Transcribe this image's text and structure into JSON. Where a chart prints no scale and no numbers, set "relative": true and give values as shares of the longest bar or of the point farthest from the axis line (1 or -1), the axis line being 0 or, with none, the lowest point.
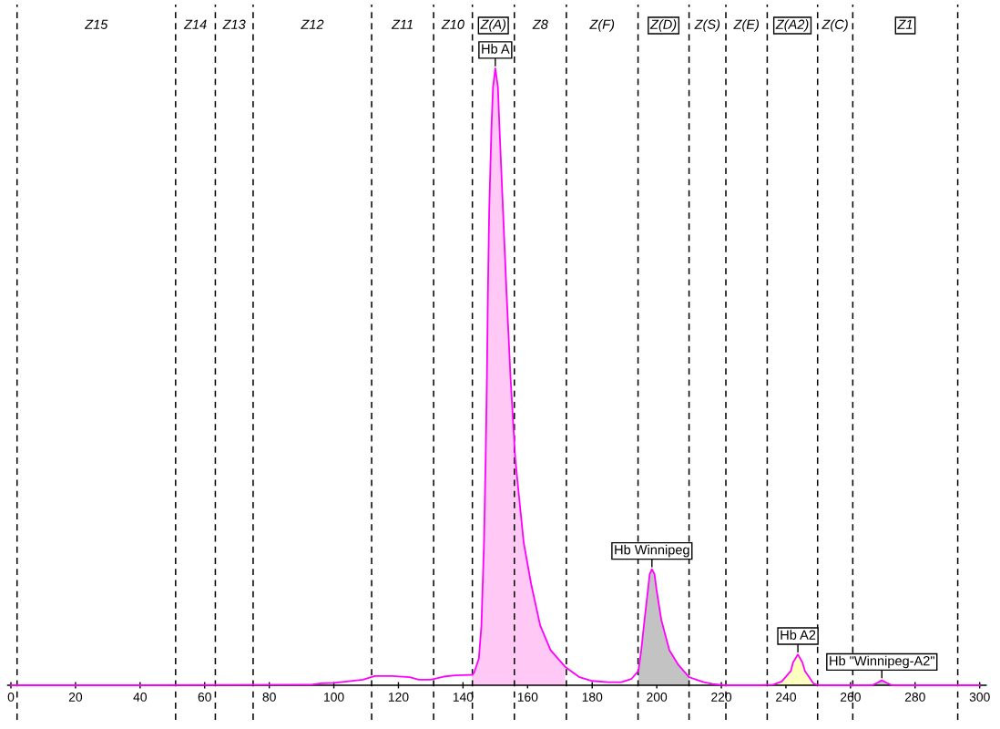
{
  "chart_data": {
    "type": "line",
    "relative": true,
    "xlim": [
      -1,
      302
    ],
    "xticks": [
      0,
      20,
      40,
      60,
      80,
      100,
      120,
      140,
      160,
      180,
      200,
      220,
      240,
      260,
      280,
      300
    ],
    "series": [
      {
        "type": "area",
        "color": "#ffc8f5",
        "x": [
          142.8,
          143.4,
          144.9,
          145.7,
          146.5,
          147.0,
          147.4,
          147.7,
          148.1,
          148.8,
          149.3,
          150,
          150.8,
          151.3,
          152.4,
          153.5,
          154.7,
          156.2,
          157.5,
          158.8,
          161.1,
          163.9,
          167.1,
          171.6
        ],
        "values": [
          0.017,
          0.02,
          0.043,
          0.097,
          0.231,
          0.366,
          0.5,
          0.634,
          0.768,
          0.903,
          0.97,
          1.0,
          0.97,
          0.903,
          0.768,
          0.634,
          0.5,
          0.366,
          0.298,
          0.231,
          0.164,
          0.097,
          0.057,
          0.03
        ]
      },
      {
        "type": "area",
        "color": "#c3c3c3",
        "x": [
          194.3,
          195.2,
          196.2,
          197.3,
          197.8,
          198.5,
          199.3,
          199.9,
          201.4,
          203.9,
          206.7,
          210
        ],
        "values": [
          0.023,
          0.057,
          0.106,
          0.156,
          0.18,
          0.188,
          0.18,
          0.156,
          0.106,
          0.057,
          0.033,
          0.013
        ]
      },
      {
        "type": "area",
        "color": "#ffffc0",
        "x": [
          236,
          238.7,
          241.5,
          242.2,
          243.7,
          245.1,
          245.9,
          248.5,
          250
        ],
        "values": [
          0.001,
          0.006,
          0.023,
          0.037,
          0.05,
          0.037,
          0.023,
          0.003,
          0
        ]
      },
      {
        "type": "area",
        "color": "#c3c3c3",
        "x": [
          266.7,
          268.3,
          269.7,
          271.2,
          272.8
        ],
        "values": [
          0,
          0.004,
          0.008,
          0.004,
          0
        ]
      },
      {
        "color": "#ff00ff",
        "x": [
          0,
          40,
          90,
          93,
          96,
          100,
          104,
          109,
          112.7,
          118,
          123.5,
          126.3,
          130,
          134,
          137.6,
          142.8,
          143.4,
          144.9,
          145.7,
          146.5,
          147.0,
          147.4,
          147.7,
          148.1,
          148.8,
          149.3,
          150,
          150.8,
          151.3,
          152.4,
          153.5,
          154.7,
          156.2,
          157.5,
          158.8,
          161.1,
          163.9,
          167.1,
          171.6,
          176.1,
          180,
          185,
          189,
          192.1,
          194.3,
          195.2,
          196.2,
          197.3,
          197.8,
          198.5,
          199.3,
          199.9,
          201.4,
          203.9,
          206.7,
          210,
          214.6,
          217.4,
          221,
          232,
          236,
          238.7,
          241.5,
          242.2,
          243.7,
          245.1,
          245.9,
          248.5,
          250,
          266.7,
          268.3,
          269.7,
          271.2,
          272.8,
          300
        ],
        "values": [
          0,
          0,
          0.001,
          0.001,
          0.003,
          0.004,
          0.006,
          0.009,
          0.015,
          0.015,
          0.013,
          0.009,
          0.009,
          0.014,
          0.016,
          0.017,
          0.02,
          0.043,
          0.097,
          0.231,
          0.366,
          0.5,
          0.634,
          0.768,
          0.903,
          0.97,
          1.0,
          0.97,
          0.903,
          0.768,
          0.634,
          0.5,
          0.366,
          0.298,
          0.231,
          0.164,
          0.097,
          0.057,
          0.03,
          0.013,
          0.007,
          0.005,
          0.005,
          0.01,
          0.023,
          0.057,
          0.106,
          0.156,
          0.18,
          0.188,
          0.18,
          0.156,
          0.106,
          0.057,
          0.033,
          0.013,
          0.005,
          0.002,
          0,
          0,
          0.001,
          0.006,
          0.023,
          0.037,
          0.05,
          0.037,
          0.023,
          0.003,
          0,
          0,
          0.004,
          0.008,
          0.004,
          0,
          0
        ]
      }
    ],
    "ref_lines": [
      {
        "axis": "x",
        "value": 1.9,
        "line_style": "dashed"
      },
      {
        "axis": "x",
        "value": 51.0,
        "line_style": "dashed"
      },
      {
        "axis": "x",
        "value": 63.3,
        "line_style": "dashed"
      },
      {
        "axis": "x",
        "value": 75.0,
        "line_style": "dashed"
      },
      {
        "axis": "x",
        "value": 111.7,
        "line_style": "dashed"
      },
      {
        "axis": "x",
        "value": 130.9,
        "line_style": "dashed"
      },
      {
        "axis": "x",
        "value": 142.9,
        "line_style": "dashed"
      },
      {
        "axis": "x",
        "value": 155.9,
        "line_style": "dashed"
      },
      {
        "axis": "x",
        "value": 172.0,
        "line_style": "dashed"
      },
      {
        "axis": "x",
        "value": 194.2,
        "line_style": "dashed"
      },
      {
        "axis": "x",
        "value": 210.0,
        "line_style": "dashed"
      },
      {
        "axis": "x",
        "value": 221.4,
        "line_style": "dashed"
      },
      {
        "axis": "x",
        "value": 234.2,
        "line_style": "dashed"
      },
      {
        "axis": "x",
        "value": 249.8,
        "line_style": "dashed"
      },
      {
        "axis": "x",
        "value": 260.7,
        "line_style": "dashed"
      },
      {
        "axis": "x",
        "value": 293.2,
        "line_style": "dashed"
      }
    ],
    "annotations": [
      "Z15",
      "Z14",
      "Z13",
      "Z12",
      "Z11",
      "Z10",
      "Z(A)",
      "Z8",
      "Z(F)",
      "Z(D)",
      "Z(S)",
      "Z(E)",
      "Z(A2)",
      "Z(C)",
      "Z1",
      {
        "text": "Hb A",
        "x": 150,
        "y": 1.0
      },
      {
        "text": "Hb Winnipeg",
        "x": 198.5,
        "y": 0.188
      },
      {
        "text": "Hb A2",
        "x": 243.7,
        "y": 0.05
      },
      {
        "text": "Hb \"Winnipeg-A2\"",
        "x": 269.7,
        "y": 0.008
      }
    ]
  }
}
